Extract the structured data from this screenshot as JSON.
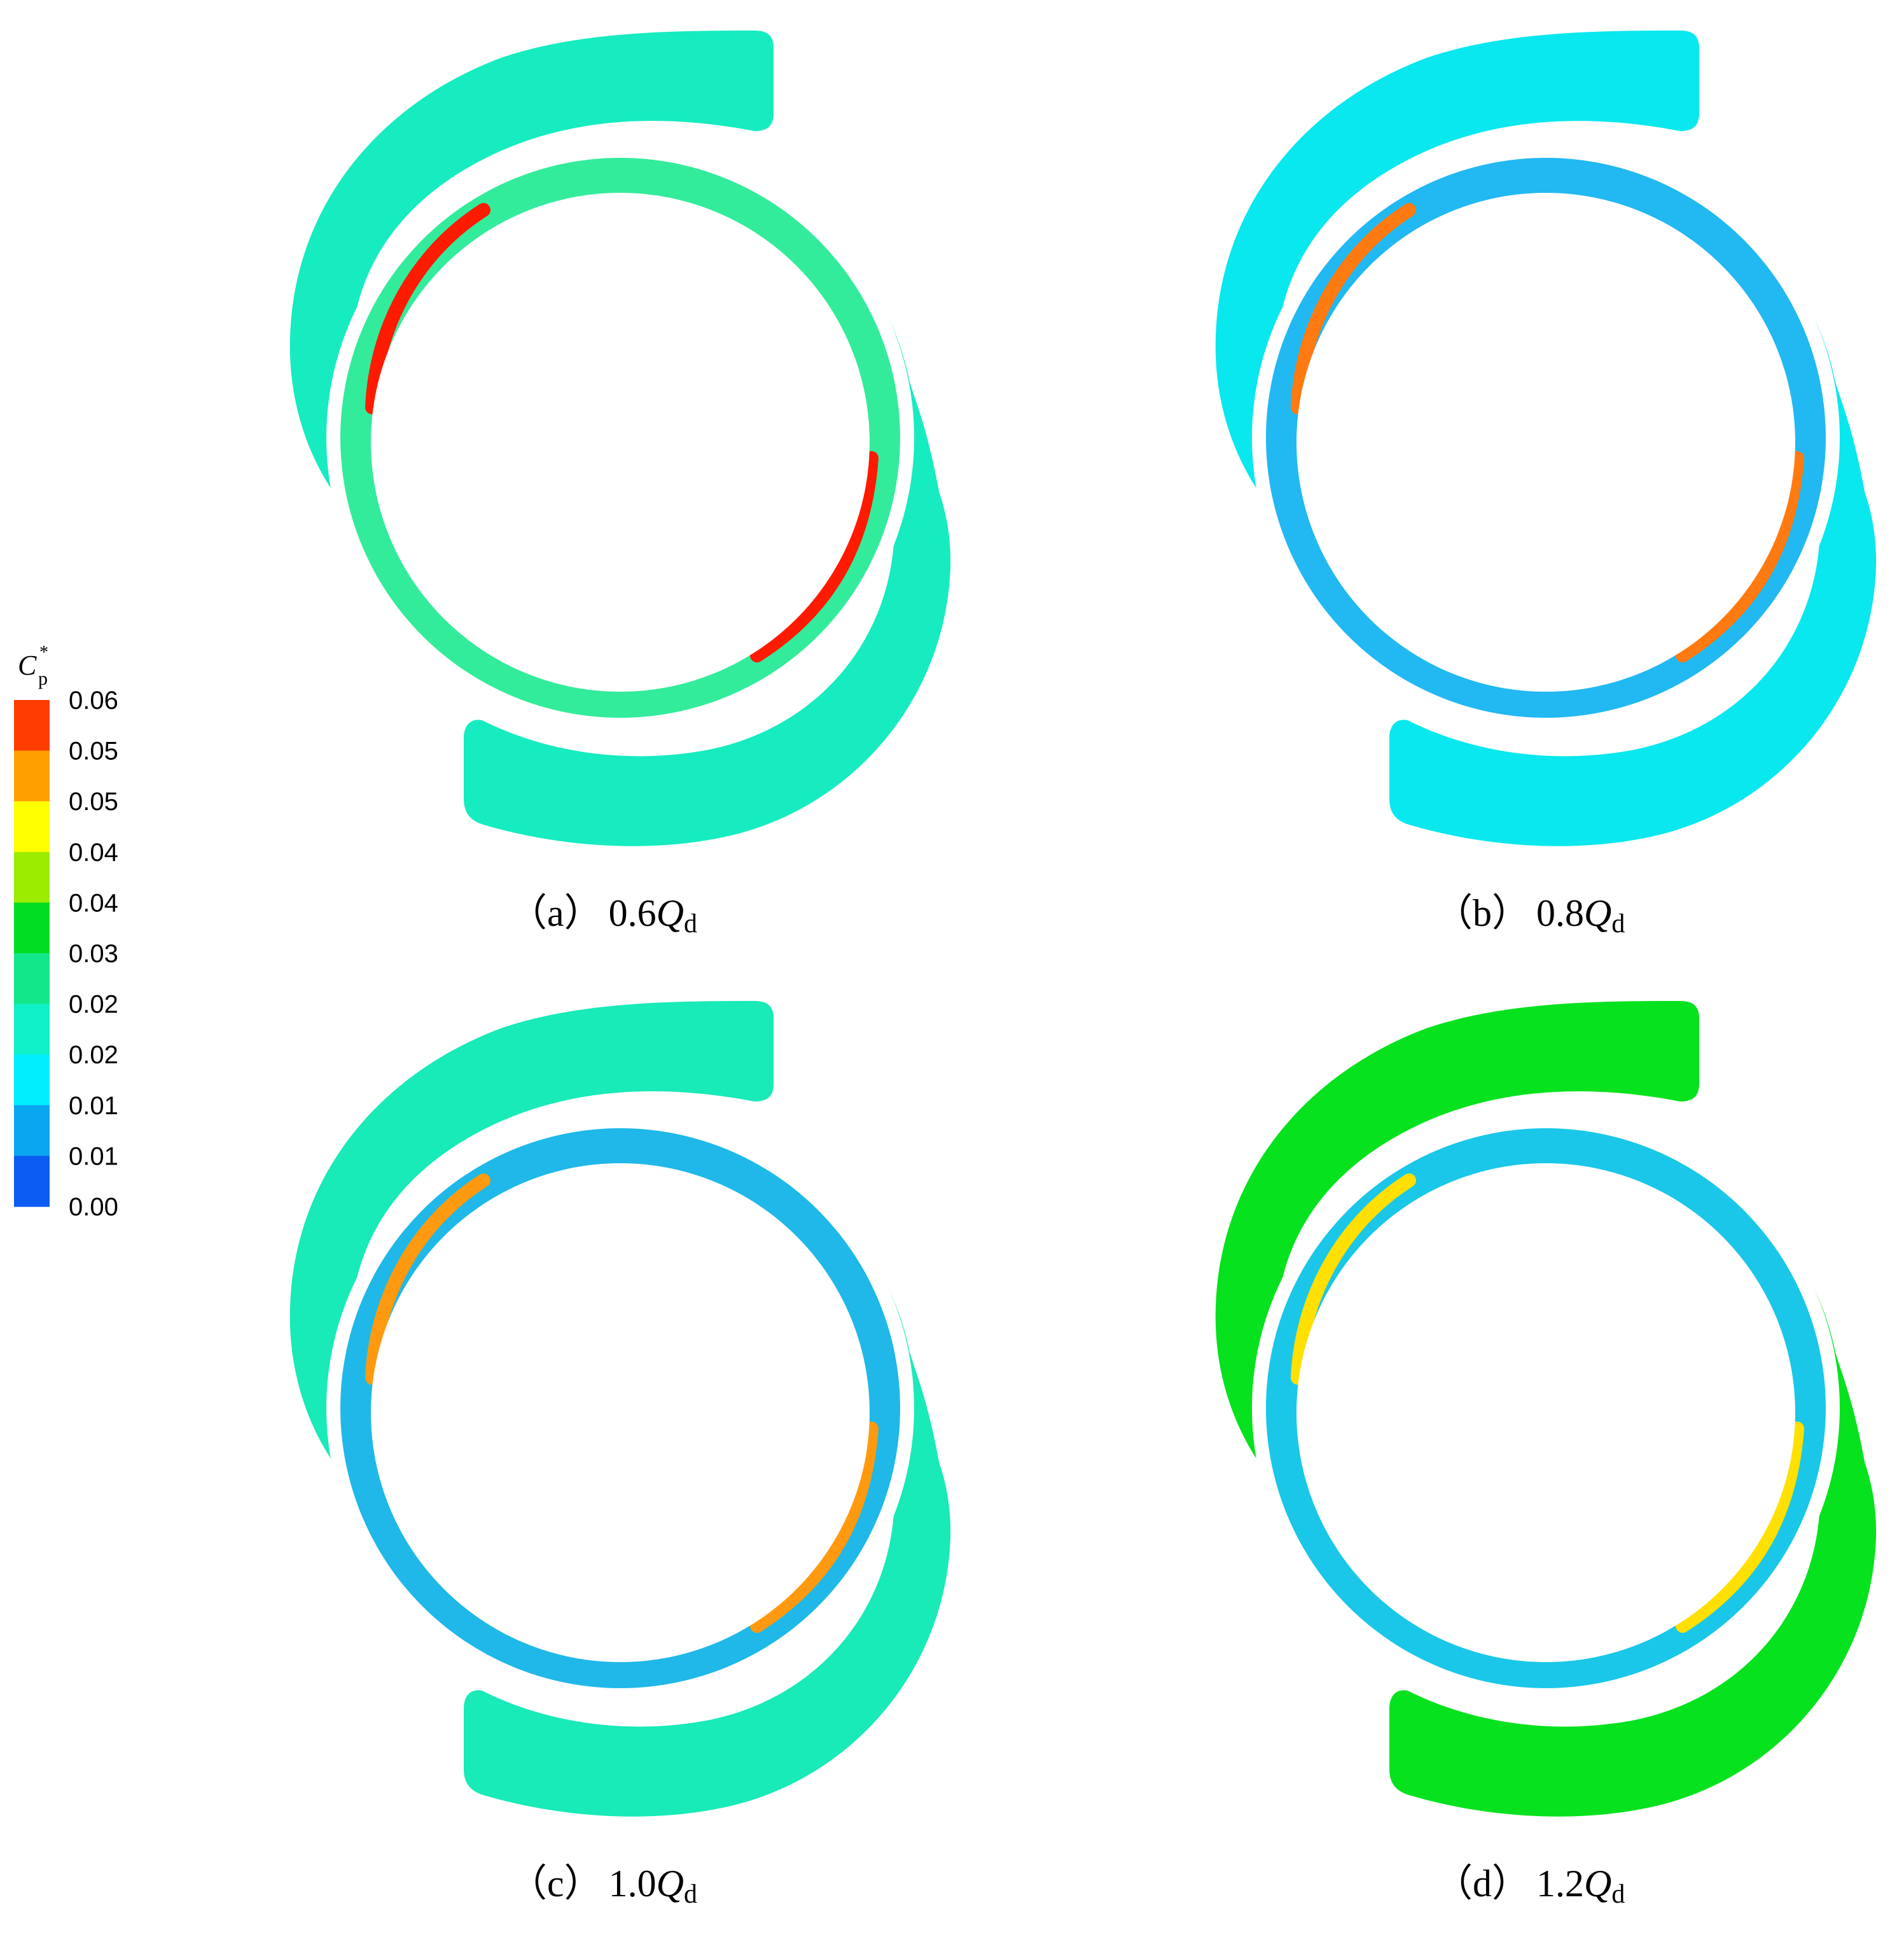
{
  "legend": {
    "symbol": "C",
    "subscript": "p",
    "superscript": "*",
    "ticks": [
      "0.06",
      "0.05",
      "0.05",
      "0.04",
      "0.04",
      "0.03",
      "0.02",
      "0.02",
      "0.01",
      "0.01",
      "0.00"
    ],
    "colors": [
      "#ff3d00",
      "#ff9f00",
      "#ffff00",
      "#9cec00",
      "#00dd22",
      "#12e88a",
      "#10f0c8",
      "#00eeff",
      "#0aa6ef",
      "#0a5cf2"
    ]
  },
  "panels": [
    {
      "id": "a",
      "tag": "（a）",
      "value": "0.6",
      "symbol": "Q",
      "sub": "d",
      "outer_color": "#16ecc0",
      "ring_color": "#33ec9b",
      "hot_color": "#ff1a00"
    },
    {
      "id": "b",
      "tag": "（b）",
      "value": "0.8",
      "symbol": "Q",
      "sub": "d",
      "outer_color": "#08e8ee",
      "ring_color": "#22b8f2",
      "hot_color": "#ff7a10"
    },
    {
      "id": "c",
      "tag": "（c）",
      "value": "1.0",
      "symbol": "Q",
      "sub": "d",
      "outer_color": "#18eab8",
      "ring_color": "#1fb8e8",
      "hot_color": "#ff9a10"
    },
    {
      "id": "d",
      "tag": "（d）",
      "value": "1.2",
      "symbol": "Q",
      "sub": "d",
      "outer_color": "#06e21e",
      "ring_color": "#1ac7e8",
      "hot_color": "#ffe000"
    }
  ]
}
